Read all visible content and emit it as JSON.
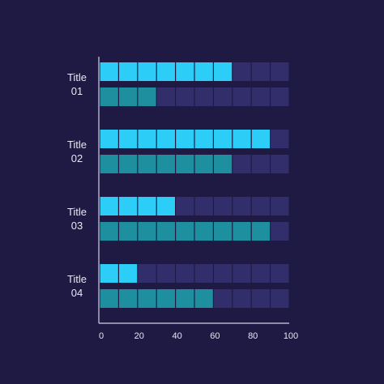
{
  "colors": {
    "background": "#1f1a44",
    "empty_cell": "#322e6b",
    "series_1": "#2ccdf6",
    "series_2": "#1d8f9e",
    "axis": "#d0d0e8",
    "text": "#e6e6f2"
  },
  "chart_data": {
    "type": "bar",
    "orientation": "horizontal",
    "style": "segmented",
    "segment_size": 10,
    "categories": [
      "Title\n01",
      "Title\n02",
      "Title\n03",
      "Title\n04"
    ],
    "series": [
      {
        "values": [
          70,
          90,
          40,
          20
        ]
      },
      {
        "values": [
          30,
          70,
          90,
          60
        ]
      }
    ],
    "xlim": [
      0,
      100
    ],
    "xticks": [
      0,
      20,
      40,
      60,
      80,
      100
    ],
    "grid": false,
    "legend": "none"
  }
}
